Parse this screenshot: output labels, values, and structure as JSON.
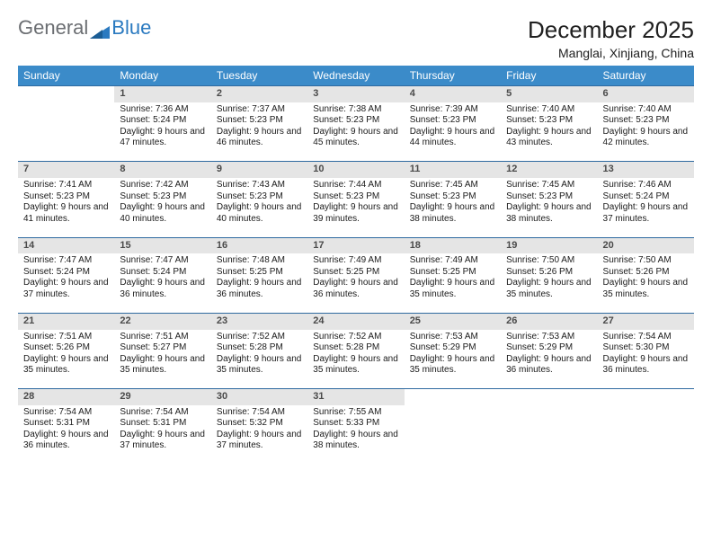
{
  "logo": {
    "text1": "General",
    "text2": "Blue",
    "color_gray": "#6b6e72",
    "color_blue": "#2b7ac0"
  },
  "title": "December 2025",
  "subtitle": "Manglai, Xinjiang, China",
  "header_bg": "#3b8bc9",
  "header_fg": "#ffffff",
  "daynum_bg": "#e5e5e5",
  "rule_color": "#2f6aa0",
  "columns": [
    "Sunday",
    "Monday",
    "Tuesday",
    "Wednesday",
    "Thursday",
    "Friday",
    "Saturday"
  ],
  "weeks": [
    [
      null,
      {
        "n": "1",
        "sr": "7:36 AM",
        "ss": "5:24 PM",
        "dl": "9 hours and 47 minutes."
      },
      {
        "n": "2",
        "sr": "7:37 AM",
        "ss": "5:23 PM",
        "dl": "9 hours and 46 minutes."
      },
      {
        "n": "3",
        "sr": "7:38 AM",
        "ss": "5:23 PM",
        "dl": "9 hours and 45 minutes."
      },
      {
        "n": "4",
        "sr": "7:39 AM",
        "ss": "5:23 PM",
        "dl": "9 hours and 44 minutes."
      },
      {
        "n": "5",
        "sr": "7:40 AM",
        "ss": "5:23 PM",
        "dl": "9 hours and 43 minutes."
      },
      {
        "n": "6",
        "sr": "7:40 AM",
        "ss": "5:23 PM",
        "dl": "9 hours and 42 minutes."
      }
    ],
    [
      {
        "n": "7",
        "sr": "7:41 AM",
        "ss": "5:23 PM",
        "dl": "9 hours and 41 minutes."
      },
      {
        "n": "8",
        "sr": "7:42 AM",
        "ss": "5:23 PM",
        "dl": "9 hours and 40 minutes."
      },
      {
        "n": "9",
        "sr": "7:43 AM",
        "ss": "5:23 PM",
        "dl": "9 hours and 40 minutes."
      },
      {
        "n": "10",
        "sr": "7:44 AM",
        "ss": "5:23 PM",
        "dl": "9 hours and 39 minutes."
      },
      {
        "n": "11",
        "sr": "7:45 AM",
        "ss": "5:23 PM",
        "dl": "9 hours and 38 minutes."
      },
      {
        "n": "12",
        "sr": "7:45 AM",
        "ss": "5:23 PM",
        "dl": "9 hours and 38 minutes."
      },
      {
        "n": "13",
        "sr": "7:46 AM",
        "ss": "5:24 PM",
        "dl": "9 hours and 37 minutes."
      }
    ],
    [
      {
        "n": "14",
        "sr": "7:47 AM",
        "ss": "5:24 PM",
        "dl": "9 hours and 37 minutes."
      },
      {
        "n": "15",
        "sr": "7:47 AM",
        "ss": "5:24 PM",
        "dl": "9 hours and 36 minutes."
      },
      {
        "n": "16",
        "sr": "7:48 AM",
        "ss": "5:25 PM",
        "dl": "9 hours and 36 minutes."
      },
      {
        "n": "17",
        "sr": "7:49 AM",
        "ss": "5:25 PM",
        "dl": "9 hours and 36 minutes."
      },
      {
        "n": "18",
        "sr": "7:49 AM",
        "ss": "5:25 PM",
        "dl": "9 hours and 35 minutes."
      },
      {
        "n": "19",
        "sr": "7:50 AM",
        "ss": "5:26 PM",
        "dl": "9 hours and 35 minutes."
      },
      {
        "n": "20",
        "sr": "7:50 AM",
        "ss": "5:26 PM",
        "dl": "9 hours and 35 minutes."
      }
    ],
    [
      {
        "n": "21",
        "sr": "7:51 AM",
        "ss": "5:26 PM",
        "dl": "9 hours and 35 minutes."
      },
      {
        "n": "22",
        "sr": "7:51 AM",
        "ss": "5:27 PM",
        "dl": "9 hours and 35 minutes."
      },
      {
        "n": "23",
        "sr": "7:52 AM",
        "ss": "5:28 PM",
        "dl": "9 hours and 35 minutes."
      },
      {
        "n": "24",
        "sr": "7:52 AM",
        "ss": "5:28 PM",
        "dl": "9 hours and 35 minutes."
      },
      {
        "n": "25",
        "sr": "7:53 AM",
        "ss": "5:29 PM",
        "dl": "9 hours and 35 minutes."
      },
      {
        "n": "26",
        "sr": "7:53 AM",
        "ss": "5:29 PM",
        "dl": "9 hours and 36 minutes."
      },
      {
        "n": "27",
        "sr": "7:54 AM",
        "ss": "5:30 PM",
        "dl": "9 hours and 36 minutes."
      }
    ],
    [
      {
        "n": "28",
        "sr": "7:54 AM",
        "ss": "5:31 PM",
        "dl": "9 hours and 36 minutes."
      },
      {
        "n": "29",
        "sr": "7:54 AM",
        "ss": "5:31 PM",
        "dl": "9 hours and 37 minutes."
      },
      {
        "n": "30",
        "sr": "7:54 AM",
        "ss": "5:32 PM",
        "dl": "9 hours and 37 minutes."
      },
      {
        "n": "31",
        "sr": "7:55 AM",
        "ss": "5:33 PM",
        "dl": "9 hours and 38 minutes."
      },
      null,
      null,
      null
    ]
  ],
  "labels": {
    "sunrise": "Sunrise: ",
    "sunset": "Sunset: ",
    "daylight": "Daylight: "
  }
}
